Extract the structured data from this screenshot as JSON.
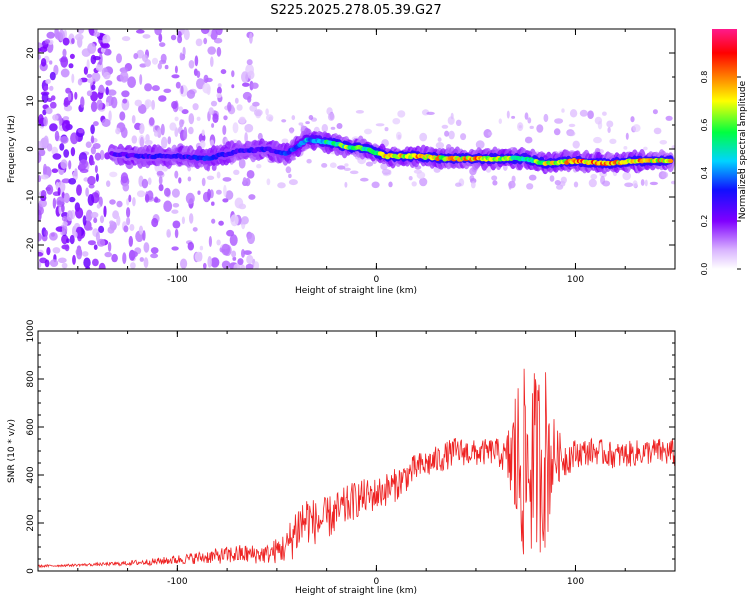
{
  "title": "S225.2025.278.05.39.G27",
  "chart_data": [
    {
      "type": "heatmap",
      "xlabel": "Height of straight line (km)",
      "ylabel": "Frequency (Hz)",
      "xlim": [
        -170,
        150
      ],
      "ylim": [
        -25,
        25
      ],
      "xticks": [
        -100,
        0,
        100
      ],
      "xtick_labels": [
        "-100",
        "0",
        "100"
      ],
      "yticks": [
        -20,
        -10,
        0,
        10,
        20
      ],
      "ytick_labels": [
        "-20",
        "-10",
        "0",
        "10",
        "20"
      ],
      "colorbar": {
        "label": "Normalized spectral amplitude",
        "range": [
          0,
          1
        ],
        "ticks": [
          0.0,
          0.2,
          0.4,
          0.6,
          0.8
        ],
        "tick_labels": [
          "0.0",
          "0.2",
          "0.4",
          "0.6",
          "0.8"
        ],
        "colors": [
          "#f0e6ff",
          "#9b30ff",
          "#2020ff",
          "#00e5ff",
          "#00ff40",
          "#ffff00",
          "#ff8000",
          "#ff0000",
          "#ff1a8c"
        ]
      },
      "ridge": {
        "description_points": [
          {
            "x": -133,
            "y": -1.0,
            "amp": 0.25
          },
          {
            "x": -120,
            "y": -1.5,
            "amp": 0.3
          },
          {
            "x": -100,
            "y": -1.5,
            "amp": 0.3
          },
          {
            "x": -85,
            "y": -2.0,
            "amp": 0.35
          },
          {
            "x": -70,
            "y": -0.5,
            "amp": 0.3
          },
          {
            "x": -55,
            "y": 0.0,
            "amp": 0.3
          },
          {
            "x": -45,
            "y": -1.0,
            "amp": 0.35
          },
          {
            "x": -35,
            "y": 2.0,
            "amp": 0.45
          },
          {
            "x": -25,
            "y": 1.5,
            "amp": 0.55
          },
          {
            "x": -15,
            "y": 0.5,
            "amp": 0.65
          },
          {
            "x": -5,
            "y": 0.0,
            "amp": 0.6
          },
          {
            "x": 5,
            "y": -1.5,
            "amp": 0.75
          },
          {
            "x": 20,
            "y": -1.5,
            "amp": 0.8
          },
          {
            "x": 35,
            "y": -2.0,
            "amp": 0.75
          },
          {
            "x": 50,
            "y": -2.0,
            "amp": 0.8
          },
          {
            "x": 65,
            "y": -2.0,
            "amp": 0.7
          },
          {
            "x": 75,
            "y": -2.0,
            "amp": 0.55
          },
          {
            "x": 85,
            "y": -3.0,
            "amp": 0.7
          },
          {
            "x": 100,
            "y": -2.5,
            "amp": 0.85
          },
          {
            "x": 115,
            "y": -3.0,
            "amp": 0.85
          },
          {
            "x": 130,
            "y": -2.5,
            "amp": 0.8
          },
          {
            "x": 148,
            "y": -2.5,
            "amp": 0.75
          }
        ]
      },
      "noise_region": {
        "x_start": -170,
        "x_end": -60,
        "dense_until": -135
      }
    },
    {
      "type": "line",
      "xlabel": "Height of straight line (km)",
      "ylabel": "SNR (10 * v/v)",
      "xlim": [
        -170,
        150
      ],
      "ylim": [
        0,
        1000
      ],
      "xticks": [
        -100,
        0,
        100
      ],
      "xtick_labels": [
        "-100",
        "0",
        "100"
      ],
      "yticks": [
        0,
        200,
        400,
        600,
        800,
        1000
      ],
      "ytick_labels": [
        "0",
        "200",
        "400",
        "600",
        "800",
        "1000"
      ],
      "series": [
        {
          "name": "SNR",
          "color": "#ee2222",
          "envelope_x": [
            -170,
            -150,
            -130,
            -110,
            -90,
            -70,
            -55,
            -45,
            -40,
            -35,
            -30,
            -20,
            -10,
            0,
            10,
            20,
            30,
            40,
            50,
            60,
            65,
            70,
            75,
            80,
            85,
            90,
            95,
            100,
            110,
            120,
            130,
            140,
            150
          ],
          "envelope_y": [
            20,
            25,
            30,
            40,
            55,
            70,
            70,
            100,
            180,
            220,
            200,
            240,
            300,
            320,
            360,
            430,
            460,
            500,
            490,
            500,
            470,
            460,
            430,
            460,
            470,
            480,
            470,
            490,
            500,
            480,
            490,
            500,
            490
          ],
          "noise_amplitude": [
            5,
            5,
            8,
            15,
            25,
            40,
            40,
            70,
            120,
            110,
            90,
            90,
            80,
            70,
            70,
            60,
            60,
            60,
            55,
            55,
            70,
            350,
            420,
            380,
            400,
            120,
            80,
            60,
            55,
            55,
            55,
            55,
            60
          ]
        }
      ]
    }
  ]
}
